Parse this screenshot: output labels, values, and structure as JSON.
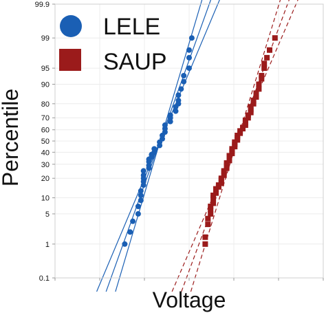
{
  "chart_data": {
    "type": "scatter",
    "title": "",
    "xlabel": "Voltage",
    "ylabel": "Percentile",
    "x_tick_labels_shown": false,
    "y_scale": "normal-probability",
    "ylim": [
      0.1,
      99.9
    ],
    "y_ticks": [
      0.1,
      1,
      5,
      10,
      20,
      30,
      40,
      50,
      60,
      70,
      80,
      90,
      95,
      99,
      99.9
    ],
    "y_tick_labels": [
      "0.1",
      "1",
      "5",
      "10",
      "20",
      "30",
      "40",
      "50",
      "60",
      "70",
      "80",
      "90",
      "95",
      "99",
      "99.9"
    ],
    "xlim": [
      0,
      100
    ],
    "grid": true,
    "legend_position": "top-left",
    "series": [
      {
        "name": "LELE",
        "marker": "circle",
        "color": "#1a5fb4",
        "fit_line": true,
        "confidence_band": "solid",
        "points": [
          [
            26,
            1
          ],
          [
            28,
            2
          ],
          [
            29,
            3.5
          ],
          [
            31,
            5
          ],
          [
            31,
            7
          ],
          [
            32,
            9
          ],
          [
            32,
            11
          ],
          [
            32,
            13
          ],
          [
            33,
            16
          ],
          [
            33,
            18
          ],
          [
            33,
            20
          ],
          [
            33,
            22
          ],
          [
            33,
            25
          ],
          [
            35,
            27
          ],
          [
            35,
            29
          ],
          [
            35,
            32
          ],
          [
            35,
            34
          ],
          [
            36,
            36
          ],
          [
            36,
            38
          ],
          [
            37,
            40
          ],
          [
            37,
            43
          ],
          [
            39,
            46
          ],
          [
            39,
            49
          ],
          [
            40,
            52
          ],
          [
            40,
            55
          ],
          [
            41,
            58
          ],
          [
            41,
            61
          ],
          [
            41,
            64
          ],
          [
            43,
            67
          ],
          [
            43,
            70
          ],
          [
            43,
            72
          ],
          [
            45,
            75
          ],
          [
            45,
            78
          ],
          [
            46,
            80
          ],
          [
            46,
            82
          ],
          [
            46,
            85
          ],
          [
            47,
            88
          ],
          [
            48,
            91
          ],
          [
            48,
            93
          ],
          [
            50,
            95
          ],
          [
            50,
            97
          ],
          [
            50,
            98
          ],
          [
            51,
            99
          ]
        ]
      },
      {
        "name": "SAUP",
        "marker": "square",
        "color": "#9b1b1b",
        "fit_line": true,
        "confidence_band": "dashed",
        "points": [
          [
            56,
            1
          ],
          [
            56,
            1.5
          ],
          [
            57,
            3
          ],
          [
            57,
            4
          ],
          [
            58,
            5
          ],
          [
            58,
            6
          ],
          [
            58,
            7
          ],
          [
            59,
            8
          ],
          [
            59,
            10
          ],
          [
            59,
            11
          ],
          [
            60,
            12
          ],
          [
            60,
            14
          ],
          [
            61,
            15
          ],
          [
            61,
            16
          ],
          [
            62,
            17
          ],
          [
            62,
            19
          ],
          [
            62,
            20
          ],
          [
            63,
            22
          ],
          [
            63,
            24
          ],
          [
            63,
            25
          ],
          [
            64,
            27
          ],
          [
            64,
            29
          ],
          [
            64,
            31
          ],
          [
            65,
            33
          ],
          [
            65,
            35
          ],
          [
            65,
            37
          ],
          [
            66,
            39
          ],
          [
            66,
            41
          ],
          [
            66,
            43
          ],
          [
            67,
            45
          ],
          [
            67,
            47
          ],
          [
            67,
            49
          ],
          [
            68,
            51
          ],
          [
            68,
            53
          ],
          [
            68,
            55
          ],
          [
            69,
            57
          ],
          [
            69,
            59
          ],
          [
            70,
            61
          ],
          [
            70,
            62
          ],
          [
            71,
            64
          ],
          [
            71,
            66
          ],
          [
            71,
            68
          ],
          [
            72,
            70
          ],
          [
            72,
            72
          ],
          [
            73,
            74
          ],
          [
            73,
            76
          ],
          [
            73,
            78
          ],
          [
            74,
            80
          ],
          [
            74,
            82
          ],
          [
            75,
            84
          ],
          [
            75,
            86
          ],
          [
            76,
            88
          ],
          [
            76,
            90
          ],
          [
            77,
            92
          ],
          [
            77,
            93
          ],
          [
            78,
            95
          ],
          [
            78,
            96
          ],
          [
            79,
            97
          ],
          [
            80,
            98
          ],
          [
            82,
            99
          ]
        ]
      }
    ]
  }
}
